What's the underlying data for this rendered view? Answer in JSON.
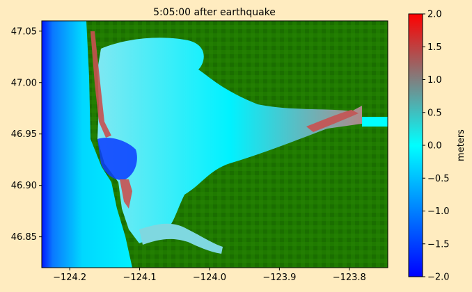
{
  "chart_data": {
    "type": "heatmap",
    "title": "5:05:00 after earthquake",
    "xlim": [
      -124.24,
      -123.745
    ],
    "ylim": [
      46.82,
      47.06
    ],
    "x_ticks": [
      {
        "value": -124.2,
        "label": "−124.2"
      },
      {
        "value": -124.1,
        "label": "−124.1"
      },
      {
        "value": -124.0,
        "label": "−124.0"
      },
      {
        "value": -123.9,
        "label": "−123.9"
      },
      {
        "value": -123.8,
        "label": "−123.8"
      }
    ],
    "y_ticks": [
      {
        "value": 46.85,
        "label": "46.85"
      },
      {
        "value": 46.9,
        "label": "46.90"
      },
      {
        "value": 46.95,
        "label": "46.95"
      },
      {
        "value": 47.0,
        "label": "47.00"
      },
      {
        "value": 47.05,
        "label": "47.05"
      }
    ],
    "colorbar": {
      "label": "meters",
      "range": [
        -2.0,
        2.0
      ],
      "colors": [
        "#0000ff",
        "#00ffff",
        "#ff0000"
      ],
      "ticks": [
        {
          "value": 2.0,
          "label": "2.0"
        },
        {
          "value": 1.5,
          "label": "1.5"
        },
        {
          "value": 1.0,
          "label": "1.0"
        },
        {
          "value": 0.5,
          "label": "0.5"
        },
        {
          "value": 0.0,
          "label": "0.0"
        },
        {
          "value": -0.5,
          "label": "−0.5"
        },
        {
          "value": -1.0,
          "label": "−1.0"
        },
        {
          "value": -1.5,
          "label": "−1.5"
        },
        {
          "value": -2.0,
          "label": "−2.0"
        }
      ]
    },
    "land_color": "#1f7a00"
  }
}
